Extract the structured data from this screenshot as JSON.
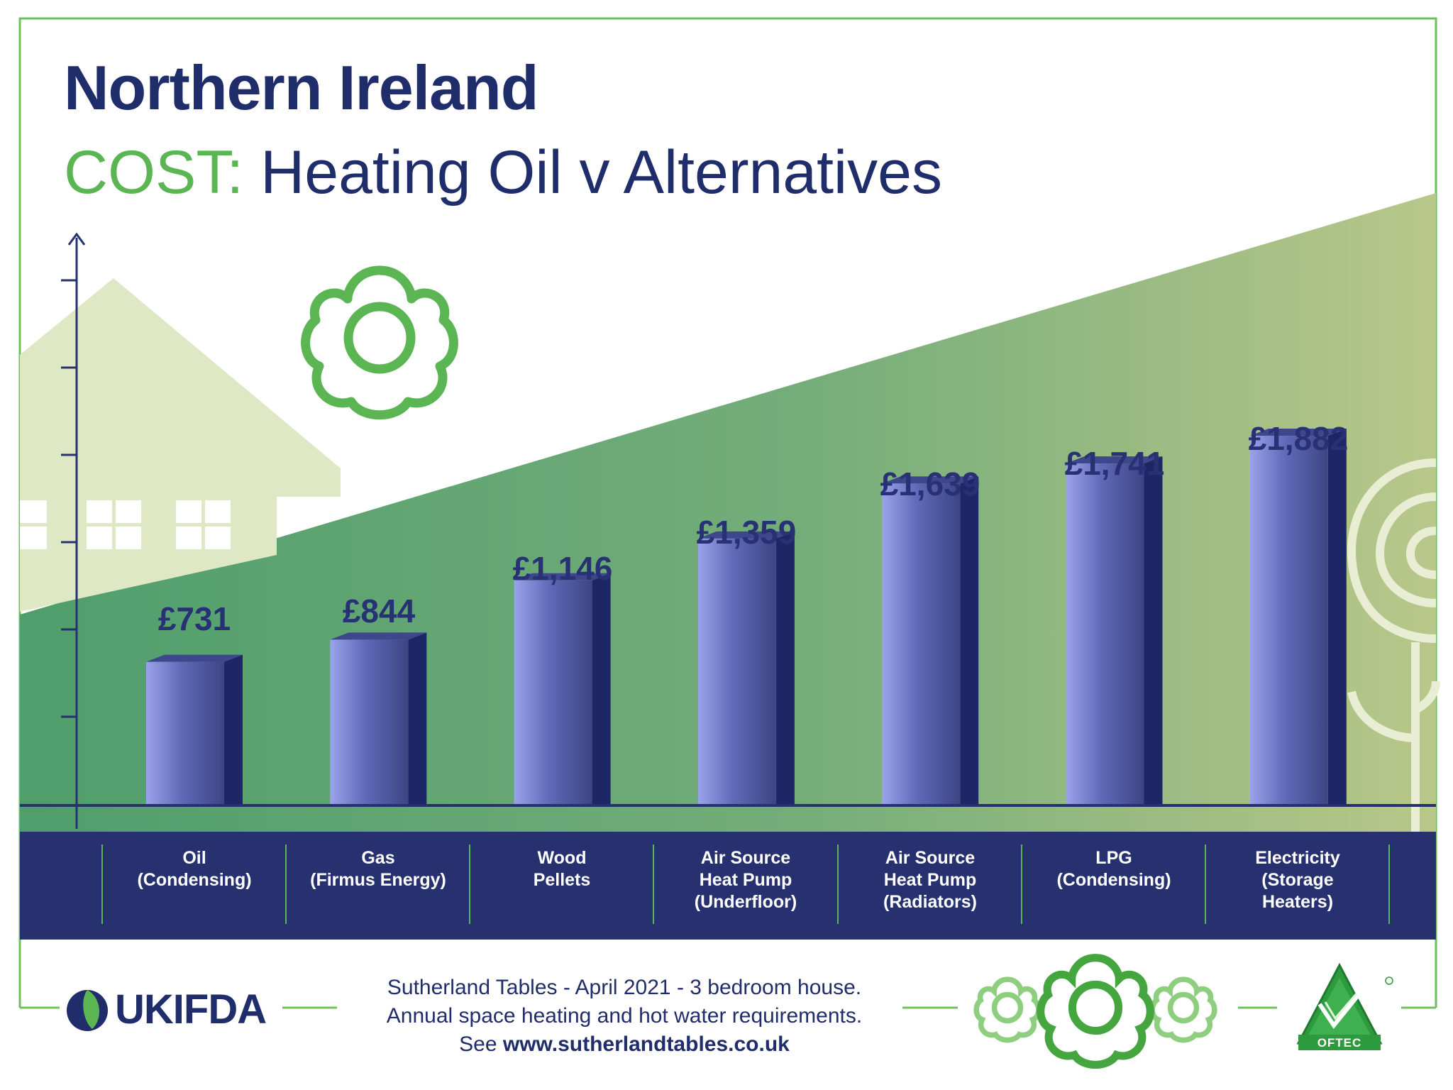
{
  "header": {
    "title": "Northern Ireland",
    "subtitle_prefix": "COST:",
    "subtitle_rest": " Heating Oil v Alternatives"
  },
  "colors": {
    "navy": "#1f2d6a",
    "green": "#5bb553",
    "bar_light": "#8e97e0",
    "bar_dark": "#273174",
    "band": "#27316f"
  },
  "chart_data": {
    "type": "bar",
    "title": "COST: Heating Oil v Alternatives",
    "region": "Northern Ireland",
    "xlabel": "",
    "ylabel": "",
    "ylim": [
      0,
      2200
    ],
    "categories": [
      "Oil\n(Condensing)",
      "Gas\n(Firmus Energy)",
      "Wood\nPellets",
      "Air Source\nHeat Pump\n(Underfloor)",
      "Air Source\nHeat Pump\n(Radiators)",
      "LPG\n(Condensing)",
      "Electricity\n(Storage\nHeaters)"
    ],
    "values": [
      731,
      844,
      1146,
      1359,
      1639,
      1741,
      1882
    ],
    "labels": [
      "£731",
      "£844",
      "£1,146",
      "£1,359",
      "£1,639",
      "£1,741",
      "£1,882"
    ],
    "unit": "£ per year",
    "grid": false
  },
  "footer": {
    "line1": "Sutherland Tables - April 2021 - 3 bedroom house.",
    "line2": "Annual space heating and hot water requirements.",
    "line3_prefix": "See ",
    "line3_url": "www.sutherlandtables.co.uk",
    "left_logo": "UKIFDA",
    "right_logo": "OFTEC"
  },
  "icons": [
    "flower-icon",
    "house-icon",
    "tree-icon",
    "ukifda-logo-icon",
    "oftec-logo-icon"
  ]
}
